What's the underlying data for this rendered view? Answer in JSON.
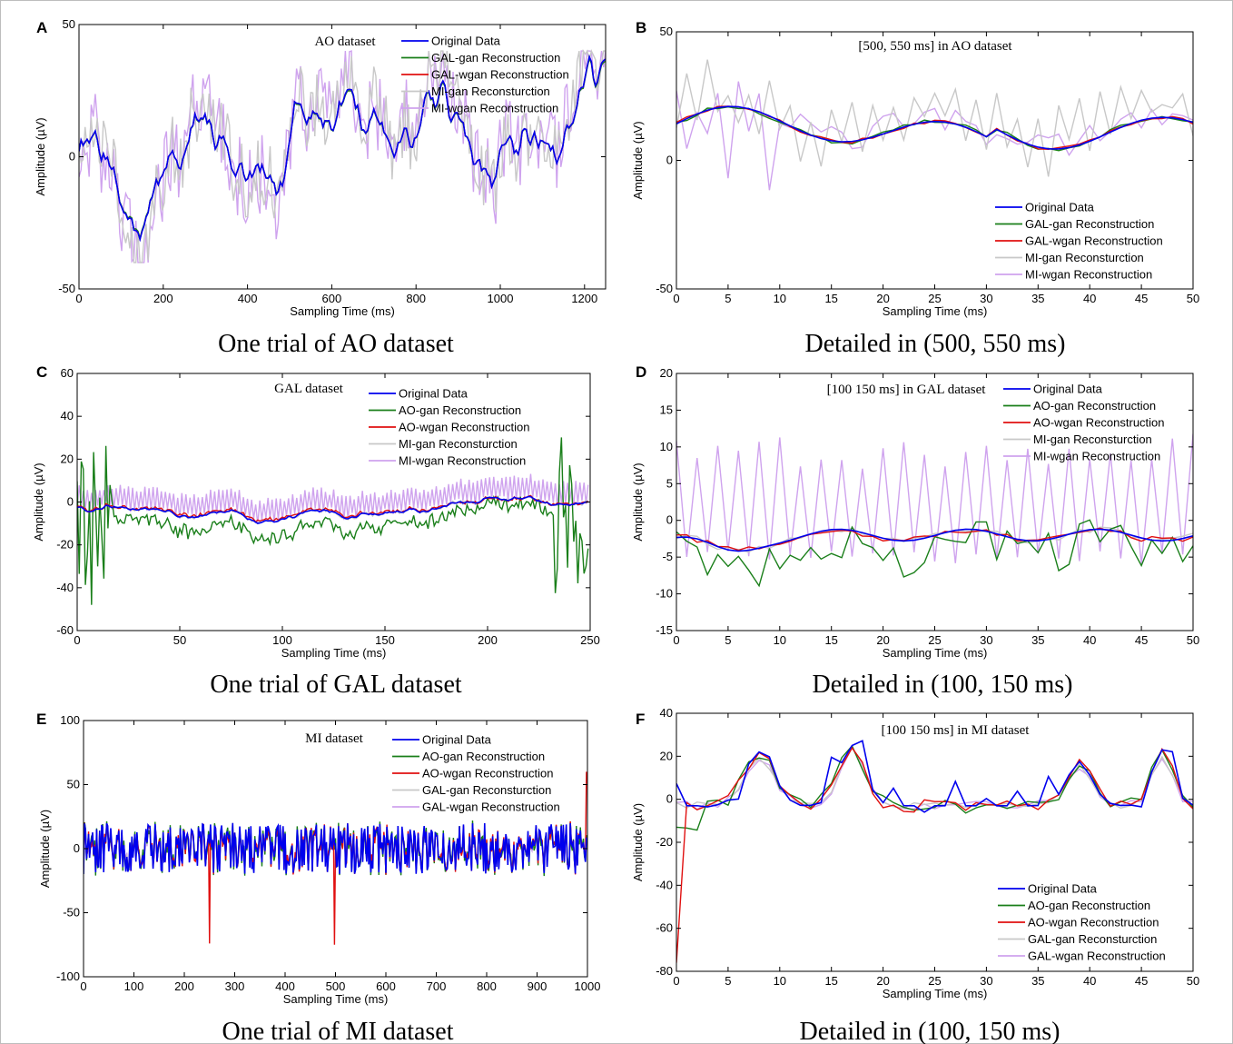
{
  "colors": {
    "original": "#0000ee",
    "gan": "#1a7f1a",
    "wgan": "#e01010",
    "alt_gan": "#c8c8c8",
    "alt_wgan": "#cfa3ee"
  },
  "chart_data": [
    {
      "id": "A",
      "letter": "A",
      "type": "line",
      "annotation": "AO dataset",
      "xlabel": "Sampling Time (ms)",
      "ylabel": "Amplitude (µV)",
      "xlim": [
        0,
        1250
      ],
      "ylim": [
        -50,
        50
      ],
      "xticks": [
        "0",
        "200",
        "400",
        "600",
        "800",
        "1000",
        "1200"
      ],
      "yticks": [
        "-50",
        "0",
        "50"
      ],
      "legend_position": "top-right",
      "caption": "One trial of AO dataset",
      "series": [
        {
          "name": "Original Data",
          "color": "#0000ee"
        },
        {
          "name": "GAL-gan Reconstruction",
          "color": "#1a7f1a"
        },
        {
          "name": "GAL-wgan Reconstruction",
          "color": "#e01010"
        },
        {
          "name": "MI-gan Reconsturction",
          "color": "#c8c8c8"
        },
        {
          "name": "MI-wgan Reconstruction",
          "color": "#cfa3ee"
        }
      ]
    },
    {
      "id": "B",
      "letter": "B",
      "type": "line",
      "annotation": "[500, 550 ms] in AO dataset",
      "xlabel": "Sampling Time (ms)",
      "ylabel": "Amplitude (µV)",
      "xlim": [
        0,
        50
      ],
      "ylim": [
        -50,
        50
      ],
      "xticks": [
        "0",
        "5",
        "10",
        "15",
        "20",
        "25",
        "30",
        "35",
        "40",
        "45",
        "50"
      ],
      "yticks": [
        "-50",
        "0",
        "50"
      ],
      "legend_position": "bottom-right",
      "caption": "Detailed in (500, 550 ms)",
      "series": [
        {
          "name": "Original Data",
          "color": "#0000ee"
        },
        {
          "name": "GAL-gan Reconstruction",
          "color": "#1a7f1a"
        },
        {
          "name": "GAL-wgan Reconstruction",
          "color": "#e01010"
        },
        {
          "name": "MI-gan Reconsturction",
          "color": "#c8c8c8"
        },
        {
          "name": "MI-wgan Reconstruction",
          "color": "#cfa3ee"
        }
      ]
    },
    {
      "id": "C",
      "letter": "C",
      "type": "line",
      "annotation": "GAL dataset",
      "xlabel": "Sampling Time (ms)",
      "ylabel": "Amplitude (µV)",
      "xlim": [
        0,
        250
      ],
      "ylim": [
        -60,
        60
      ],
      "xticks": [
        "0",
        "50",
        "100",
        "150",
        "200",
        "250"
      ],
      "yticks": [
        "-60",
        "-40",
        "-20",
        "0",
        "20",
        "40",
        "60"
      ],
      "legend_position": "top-right",
      "caption": "One trial of GAL dataset",
      "series": [
        {
          "name": "Original Data",
          "color": "#0000ee"
        },
        {
          "name": "AO-gan Reconstruction",
          "color": "#1a7f1a"
        },
        {
          "name": "AO-wgan Reconstruction",
          "color": "#e01010"
        },
        {
          "name": "MI-gan Reconsturction",
          "color": "#c8c8c8"
        },
        {
          "name": "MI-wgan Reconstruction",
          "color": "#cfa3ee"
        }
      ]
    },
    {
      "id": "D",
      "letter": "D",
      "type": "line",
      "annotation": "[100 150 ms] in GAL dataset",
      "xlabel": "Sampling Time (ms)",
      "ylabel": "Amplitude (µV)",
      "xlim": [
        0,
        50
      ],
      "ylim": [
        -15,
        20
      ],
      "xticks": [
        "0",
        "5",
        "10",
        "15",
        "20",
        "25",
        "30",
        "35",
        "40",
        "45",
        "50"
      ],
      "yticks": [
        "-15",
        "-10",
        "-5",
        "0",
        "5",
        "10",
        "15",
        "20"
      ],
      "legend_position": "top-right",
      "caption": "Detailed in (100, 150 ms)",
      "series": [
        {
          "name": "Original Data",
          "color": "#0000ee"
        },
        {
          "name": "AO-gan Reconstruction",
          "color": "#1a7f1a"
        },
        {
          "name": "AO-wgan Reconstruction",
          "color": "#e01010"
        },
        {
          "name": "MI-gan Reconsturction",
          "color": "#c8c8c8"
        },
        {
          "name": "MI-wgan Reconstruction",
          "color": "#cfa3ee"
        }
      ]
    },
    {
      "id": "E",
      "letter": "E",
      "type": "line",
      "annotation": "MI dataset",
      "xlabel": "Sampling Time (ms)",
      "ylabel": "Amplitude (µV)",
      "xlim": [
        0,
        1000
      ],
      "ylim": [
        -100,
        100
      ],
      "xticks": [
        "0",
        "100",
        "200",
        "300",
        "400",
        "500",
        "600",
        "700",
        "800",
        "900",
        "1000"
      ],
      "yticks": [
        "-100",
        "-50",
        "0",
        "50",
        "100"
      ],
      "legend_position": "top-right",
      "caption": "One trial of MI dataset",
      "series": [
        {
          "name": "Original Data",
          "color": "#0000ee"
        },
        {
          "name": "AO-gan Reconstruction",
          "color": "#1a7f1a"
        },
        {
          "name": "AO-wgan Reconstruction",
          "color": "#e01010"
        },
        {
          "name": "GAL-gan Reconsturction",
          "color": "#c8c8c8"
        },
        {
          "name": "GAL-wgan Reconstruction",
          "color": "#cfa3ee"
        }
      ]
    },
    {
      "id": "F",
      "letter": "F",
      "type": "line",
      "annotation": "[100 150 ms] in MI dataset",
      "xlabel": "Sampling Time (ms)",
      "ylabel": "Amplitude (µV)",
      "xlim": [
        0,
        50
      ],
      "ylim": [
        -80,
        40
      ],
      "xticks": [
        "0",
        "5",
        "10",
        "15",
        "20",
        "25",
        "30",
        "35",
        "40",
        "45",
        "50"
      ],
      "yticks": [
        "-80",
        "-60",
        "-40",
        "-20",
        "0",
        "20",
        "40"
      ],
      "legend_position": "bottom-right",
      "caption": "Detailed in (100, 150 ms)",
      "series": [
        {
          "name": "Original Data",
          "color": "#0000ee"
        },
        {
          "name": "AO-gan Reconstruction",
          "color": "#1a7f1a"
        },
        {
          "name": "AO-wgan Reconstruction",
          "color": "#e01010"
        },
        {
          "name": "GAL-gan Reconsturction",
          "color": "#c8c8c8"
        },
        {
          "name": "GAL-wgan Reconstruction",
          "color": "#cfa3ee"
        }
      ]
    }
  ]
}
